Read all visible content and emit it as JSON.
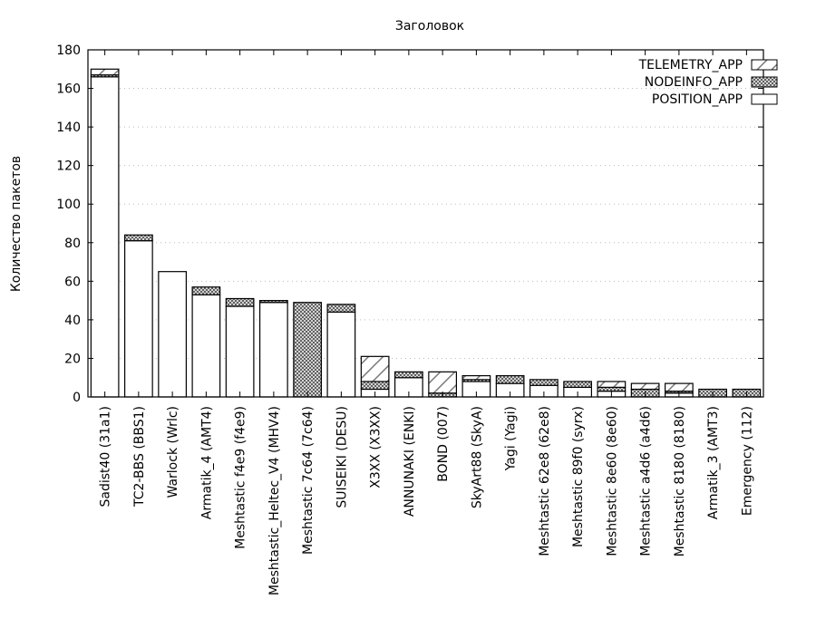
{
  "chart_data": {
    "type": "bar",
    "stacked": true,
    "title": "Заголовок",
    "xlabel": "",
    "ylabel": "Количество пакетов",
    "ylim": [
      0,
      180
    ],
    "yticks": [
      0,
      20,
      40,
      60,
      80,
      100,
      120,
      140,
      160,
      180
    ],
    "grid": "horizontal dotted",
    "legend": "top-right",
    "categories": [
      "Sadist40 (31a1)",
      "TC2-BBS (BBS1)",
      "Warlock (Wrlc)",
      "Armatik_4 (AMT4)",
      "Meshtastic f4e9 (f4e9)",
      "Meshtastic_Heltec_V4 (MHV4)",
      "Meshtastic 7c64 (7c64)",
      "SUISEIKI (DESU)",
      "X3XX (X3XX)",
      "ANNUNAKI (ENKI)",
      "BOND (007)",
      "SkyArt88 (SkyA)",
      "Yagi (Yagi)",
      "Meshtastic 62e8 (62e8)",
      "Meshtastic 89f0 (syrx)",
      "Meshtastic 8e60 (8e60)",
      "Meshtastic a4d6 (a4d6)",
      "Meshtastic 8180 (8180)",
      "Armatik_3 (AMT3)",
      "Emergency (112)"
    ],
    "series": [
      {
        "name": "POSITION_APP",
        "fill": "empty",
        "values": [
          166,
          81,
          65,
          53,
          47,
          49,
          0,
          44,
          4,
          10,
          0,
          8,
          7,
          6,
          5,
          3,
          0,
          2,
          0,
          0
        ]
      },
      {
        "name": "NODEINFO_APP",
        "fill": "crosshatch",
        "values": [
          1,
          3,
          0,
          4,
          4,
          1,
          49,
          4,
          4,
          3,
          2,
          1,
          4,
          3,
          3,
          2,
          4,
          1,
          4,
          4
        ]
      },
      {
        "name": "TELEMETRY_APP",
        "fill": "diagonal-hatch",
        "values": [
          3,
          0,
          0,
          0,
          0,
          0,
          0,
          0,
          13,
          0,
          11,
          2,
          0,
          0,
          0,
          3,
          3,
          4,
          0,
          0
        ]
      }
    ]
  }
}
